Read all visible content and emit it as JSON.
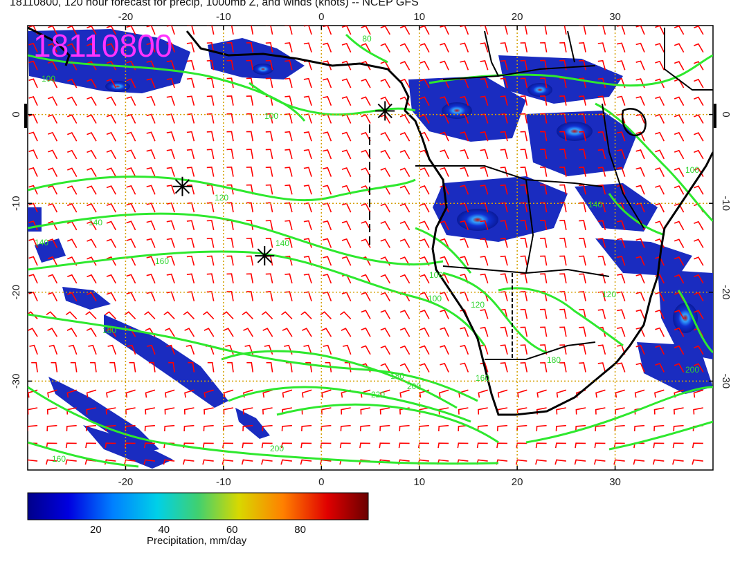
{
  "title": "18110800, 120 hour forecast for precip, 1000mb Z, and winds (knots) -- NCEP GFS",
  "date_stamp": "18110800",
  "axes": {
    "lon_ticks": [
      "-20",
      "-10",
      "0",
      "10",
      "20",
      "30"
    ],
    "lon_values": [
      -20,
      -10,
      0,
      10,
      20,
      30
    ],
    "lat_ticks": [
      "0",
      "-10",
      "-20",
      "-30"
    ],
    "lat_values": [
      0,
      -10,
      -20,
      -30
    ],
    "lon_range": [
      -30,
      40
    ],
    "lat_range": [
      -40,
      10
    ]
  },
  "contour_labels": [
    "80",
    "100",
    "100",
    "120",
    "140",
    "140",
    "160",
    "180",
    "160",
    "180",
    "220",
    "200",
    "160",
    "100",
    "120",
    "200",
    "140",
    "100",
    "200",
    "180",
    "120",
    "140",
    "100"
  ],
  "colorbar": {
    "label": "Precipitation, mm/day",
    "ticks": [
      "20",
      "40",
      "60",
      "80"
    ],
    "tick_values": [
      20,
      40,
      60,
      80
    ],
    "range": [
      0,
      100
    ]
  },
  "markers": [
    {
      "lon": 6.5,
      "lat": 0.4
    },
    {
      "lon": -14.2,
      "lat": -8.1
    },
    {
      "lon": -5.8,
      "lat": -15.9
    }
  ],
  "colors": {
    "contour": "#2ee82e",
    "wind_barb": "#ff0000",
    "coast": "#000000",
    "grid": "#d4a000",
    "stamp": "#ff33ff"
  },
  "chart_data": {
    "type": "heatmap",
    "title": "18110800, 120 hour forecast for precip, 1000mb Z, and winds (knots) -- NCEP GFS",
    "xlabel": "",
    "ylabel": "",
    "x_ticks": [
      -20,
      -10,
      0,
      10,
      20,
      30
    ],
    "y_ticks": [
      0,
      -10,
      -20,
      -30
    ],
    "xlim": [
      -30,
      40
    ],
    "ylim": [
      -40,
      10
    ],
    "colorbar_label": "Precipitation, mm/day",
    "colorbar_range": [
      0,
      100
    ]
  }
}
